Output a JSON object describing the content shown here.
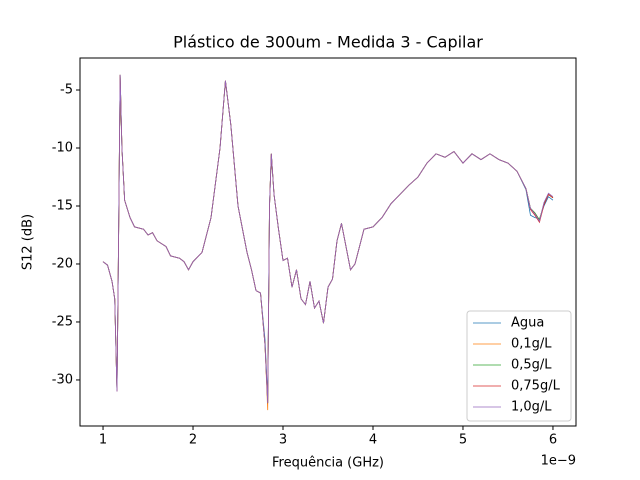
{
  "chart_data": {
    "type": "line",
    "title": "Plástico de 300um - Medida 3 - Capilar",
    "xlabel": "Frequência (GHz)",
    "ylabel": "S12 (dB)",
    "x_offset_label": "1e−9",
    "x": [
      1.0,
      1.05,
      1.1,
      1.13,
      1.155,
      1.17,
      1.19,
      1.21,
      1.24,
      1.3,
      1.35,
      1.45,
      1.5,
      1.55,
      1.6,
      1.7,
      1.75,
      1.85,
      1.9,
      1.95,
      2.0,
      2.1,
      2.2,
      2.3,
      2.36,
      2.42,
      2.5,
      2.6,
      2.65,
      2.7,
      2.75,
      2.8,
      2.83,
      2.85,
      2.87,
      2.9,
      2.95,
      3.0,
      3.05,
      3.1,
      3.15,
      3.2,
      3.25,
      3.3,
      3.35,
      3.4,
      3.45,
      3.5,
      3.55,
      3.6,
      3.65,
      3.7,
      3.75,
      3.8,
      3.9,
      4.0,
      4.1,
      4.2,
      4.3,
      4.4,
      4.5,
      4.6,
      4.7,
      4.8,
      4.9,
      5.0,
      5.1,
      5.2,
      5.3,
      5.4,
      5.5,
      5.6,
      5.7,
      5.75,
      5.8,
      5.85,
      5.9,
      5.95,
      6.0
    ],
    "series": [
      {
        "name": "Agua",
        "color": "#1f77b4",
        "values": [
          -19.8,
          -20.1,
          -21.5,
          -23,
          -31,
          -20,
          -3.7,
          -10,
          -14.5,
          -16,
          -16.8,
          -17,
          -17.5,
          -17.3,
          -18,
          -18.5,
          -19.3,
          -19.5,
          -19.8,
          -20.5,
          -19.8,
          -19,
          -16,
          -10,
          -4.2,
          -8,
          -15,
          -19,
          -20.5,
          -22.3,
          -22.5,
          -26.5,
          -31.5,
          -15,
          -10.5,
          -14,
          -17,
          -19.7,
          -19.5,
          -22,
          -20.5,
          -23,
          -23.5,
          -21.5,
          -23.8,
          -23.2,
          -25.1,
          -22,
          -21.3,
          -18,
          -16.5,
          -18.5,
          -20.5,
          -20,
          -17,
          -16.8,
          -16,
          -14.8,
          -14,
          -13.2,
          -12.5,
          -11.3,
          -10.5,
          -10.8,
          -10.3,
          -11.3,
          -10.5,
          -11,
          -10.5,
          -11,
          -11.3,
          -12,
          -13.6,
          -15.8,
          -16,
          -16.1,
          -15,
          -14.2,
          -14.5
        ]
      },
      {
        "name": "0,1g/L",
        "color": "#ff7f0e",
        "values": [
          -19.8,
          -20.1,
          -21.5,
          -23,
          -31,
          -20,
          -3.7,
          -10,
          -14.5,
          -16,
          -16.8,
          -17,
          -17.5,
          -17.3,
          -18,
          -18.5,
          -19.3,
          -19.5,
          -19.8,
          -20.5,
          -19.8,
          -19,
          -16,
          -10,
          -4.2,
          -8,
          -15,
          -19,
          -20.5,
          -22.3,
          -22.5,
          -27,
          -32.6,
          -15,
          -10.5,
          -14,
          -17,
          -19.7,
          -19.5,
          -22,
          -20.5,
          -23,
          -23.5,
          -21.5,
          -23.8,
          -23.2,
          -25.1,
          -22,
          -21.3,
          -18,
          -16.5,
          -18.5,
          -20.5,
          -20,
          -17,
          -16.8,
          -16,
          -14.8,
          -14,
          -13.2,
          -12.5,
          -11.3,
          -10.5,
          -10.8,
          -10.3,
          -11.3,
          -10.5,
          -11,
          -10.5,
          -11,
          -11.3,
          -12,
          -13.5,
          -15.2,
          -15.6,
          -16.2,
          -14.8,
          -14,
          -14.3
        ]
      },
      {
        "name": "0,5g/L",
        "color": "#2ca02c",
        "values": [
          -19.8,
          -20.1,
          -21.5,
          -23,
          -31,
          -20,
          -3.7,
          -10,
          -14.5,
          -16,
          -16.8,
          -17,
          -17.5,
          -17.3,
          -18,
          -18.5,
          -19.3,
          -19.5,
          -19.8,
          -20.5,
          -19.8,
          -19,
          -16,
          -10,
          -4.2,
          -8,
          -15,
          -19,
          -20.5,
          -22.3,
          -22.5,
          -27,
          -32,
          -15,
          -10.5,
          -14,
          -17,
          -19.7,
          -19.5,
          -22,
          -20.5,
          -23,
          -23.5,
          -21.5,
          -23.8,
          -23.2,
          -25.1,
          -22,
          -21.3,
          -18,
          -16.5,
          -18.5,
          -20.5,
          -20,
          -17,
          -16.8,
          -16,
          -14.8,
          -14,
          -13.2,
          -12.5,
          -11.3,
          -10.5,
          -10.8,
          -10.3,
          -11.3,
          -10.5,
          -11,
          -10.5,
          -11,
          -11.3,
          -12,
          -13.5,
          -15.2,
          -15.6,
          -16.2,
          -14.8,
          -14,
          -14.3
        ]
      },
      {
        "name": "0,75g/L",
        "color": "#d62728",
        "values": [
          -19.8,
          -20.1,
          -21.5,
          -23,
          -31,
          -20,
          -3.7,
          -10,
          -14.5,
          -16,
          -16.8,
          -17,
          -17.5,
          -17.3,
          -18,
          -18.5,
          -19.3,
          -19.5,
          -19.8,
          -20.5,
          -19.8,
          -19,
          -16,
          -10,
          -4.2,
          -8,
          -15,
          -19,
          -20.5,
          -22.3,
          -22.5,
          -27,
          -32,
          -15,
          -10.5,
          -14,
          -17,
          -19.7,
          -19.5,
          -22,
          -20.5,
          -23,
          -23.5,
          -21.5,
          -23.8,
          -23.2,
          -25.1,
          -22,
          -21.3,
          -18,
          -16.5,
          -18.5,
          -20.5,
          -20,
          -17,
          -16.8,
          -16,
          -14.8,
          -14,
          -13.2,
          -12.5,
          -11.3,
          -10.5,
          -10.8,
          -10.3,
          -11.3,
          -10.5,
          -11,
          -10.5,
          -11,
          -11.3,
          -12,
          -13.5,
          -15.3,
          -15.8,
          -16.4,
          -14.9,
          -14,
          -14.3
        ]
      },
      {
        "name": "1,0g/L",
        "color": "#9467bd",
        "values": [
          -19.8,
          -20.1,
          -21.5,
          -23,
          -31,
          -20,
          -3.7,
          -10,
          -14.5,
          -16,
          -16.8,
          -17,
          -17.5,
          -17.3,
          -18,
          -18.5,
          -19.3,
          -19.5,
          -19.8,
          -20.5,
          -19.8,
          -19,
          -16,
          -10,
          -4.2,
          -8,
          -15,
          -19,
          -20.5,
          -22.3,
          -22.5,
          -27,
          -32,
          -15,
          -10.5,
          -14,
          -17,
          -19.7,
          -19.5,
          -22,
          -20.5,
          -23,
          -23.5,
          -21.5,
          -23.8,
          -23.2,
          -25.1,
          -22,
          -21.3,
          -18,
          -16.5,
          -18.5,
          -20.5,
          -20,
          -17,
          -16.8,
          -16,
          -14.8,
          -14,
          -13.2,
          -12.5,
          -11.3,
          -10.5,
          -10.8,
          -10.3,
          -11.3,
          -10.5,
          -11,
          -10.5,
          -11,
          -11.3,
          -12,
          -13.5,
          -15.2,
          -15.7,
          -16.3,
          -14.7,
          -13.9,
          -14.2
        ]
      }
    ],
    "xlim": [
      0.744,
      6.256
    ],
    "xticks": [
      1,
      2,
      3,
      4,
      5,
      6
    ],
    "ylim": [
      -33.97,
      -2.24
    ],
    "yticks": [
      -5,
      -10,
      -15,
      -20,
      -25,
      -30
    ],
    "legend": "lower right"
  }
}
